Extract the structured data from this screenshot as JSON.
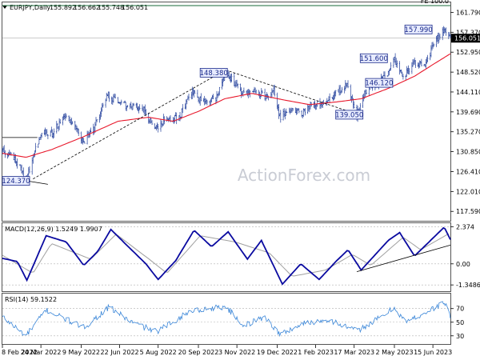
{
  "header": {
    "symbol": "EURJPY,Daily",
    "ohlc": [
      "155.892",
      "156.662",
      "155.748",
      "156.051"
    ]
  },
  "watermark": "ActionForex.com",
  "colors": {
    "candle": "#1f3d9a",
    "sma": "#e8192c",
    "macd": "#0a0aa0",
    "signal": "#a0a0a0",
    "rsi": "#3a86d8",
    "trendline": "#000000",
    "fe_line": "#1a6b3a",
    "price_tag_bg": "#000000",
    "price_tag_fg": "#ffffff",
    "label_border": "#1a2a8a",
    "label_bg": "#e8ecff"
  },
  "chart_data": [
    {
      "type": "line",
      "panel": "price",
      "y_axis": {
        "range": [
          115.5,
          164.0
        ],
        "ticks": [
          "161.790",
          "157.370",
          "152.950",
          "148.520",
          "144.110",
          "139.690",
          "135.270",
          "130.850",
          "126.410",
          "122.010",
          "117.590"
        ]
      },
      "x_axis": {
        "range": [
          "2022-02-08",
          "2023-07-05"
        ],
        "ticks": [
          "8 Feb 2022",
          "24 Mar 2022",
          "9 May 2022",
          "22 Jun 2022",
          "5 Aug 2022",
          "20 Sep 2022",
          "3 Nov 2022",
          "19 Dec 2022",
          "1 Feb 2023",
          "17 Mar 2023",
          "2 May 2023",
          "15 Jun 2023"
        ]
      },
      "current_price": "156.051",
      "fe_level": {
        "label": "FE 100.0",
        "value": 163.3
      },
      "series": [
        {
          "role": "price",
          "points": [
            [
              "2022-02-08",
              131.0
            ],
            [
              "2022-02-18",
              130.2
            ],
            [
              "2022-03-01",
              127.6
            ],
            [
              "2022-03-07",
              124.37
            ],
            [
              "2022-03-15",
              129.8
            ],
            [
              "2022-03-28",
              135.5
            ],
            [
              "2022-04-06",
              134.8
            ],
            [
              "2022-04-20",
              139.0
            ],
            [
              "2022-05-02",
              137.0
            ],
            [
              "2022-05-12",
              133.0
            ],
            [
              "2022-05-25",
              136.5
            ],
            [
              "2022-06-08",
              143.6
            ],
            [
              "2022-06-20",
              141.5
            ],
            [
              "2022-07-05",
              141.0
            ],
            [
              "2022-07-20",
              140.2
            ],
            [
              "2022-08-02",
              135.6
            ],
            [
              "2022-08-12",
              138.0
            ],
            [
              "2022-08-29",
              138.4
            ],
            [
              "2022-09-12",
              144.2
            ],
            [
              "2022-09-27",
              141.5
            ],
            [
              "2022-10-10",
              143.0
            ],
            [
              "2022-10-21",
              148.38
            ],
            [
              "2022-11-01",
              146.0
            ],
            [
              "2022-11-11",
              143.5
            ],
            [
              "2022-11-22",
              144.8
            ],
            [
              "2022-12-05",
              143.0
            ],
            [
              "2022-12-15",
              144.5
            ],
            [
              "2022-12-22",
              138.5
            ],
            [
              "2023-01-06",
              140.5
            ],
            [
              "2023-01-16",
              139.0
            ],
            [
              "2023-01-26",
              141.5
            ],
            [
              "2023-02-09",
              141.0
            ],
            [
              "2023-02-27",
              144.5
            ],
            [
              "2023-03-09",
              145.5
            ],
            [
              "2023-03-20",
              139.05
            ],
            [
              "2023-03-31",
              144.5
            ],
            [
              "2023-04-12",
              146.12
            ],
            [
              "2023-04-25",
              148.5
            ],
            [
              "2023-05-02",
              151.6
            ],
            [
              "2023-05-12",
              147.6
            ],
            [
              "2023-05-26",
              150.5
            ],
            [
              "2023-06-06",
              149.8
            ],
            [
              "2023-06-16",
              154.8
            ],
            [
              "2023-06-28",
              157.99
            ],
            [
              "2023-07-05",
              156.05
            ]
          ]
        },
        {
          "role": "sma",
          "points": [
            [
              "2022-02-08",
              130.5
            ],
            [
              "2022-03-07",
              129.6
            ],
            [
              "2022-04-05",
              131.3
            ],
            [
              "2022-05-12",
              134.2
            ],
            [
              "2022-06-20",
              137.6
            ],
            [
              "2022-07-25",
              138.5
            ],
            [
              "2022-08-22",
              137.6
            ],
            [
              "2022-09-20",
              139.8
            ],
            [
              "2022-10-20",
              142.6
            ],
            [
              "2022-11-20",
              143.8
            ],
            [
              "2022-12-25",
              142.4
            ],
            [
              "2023-01-25",
              141.3
            ],
            [
              "2023-02-25",
              141.9
            ],
            [
              "2023-03-25",
              142.6
            ],
            [
              "2023-04-25",
              144.9
            ],
            [
              "2023-05-25",
              147.6
            ],
            [
              "2023-06-15",
              150.2
            ],
            [
              "2023-07-05",
              152.6
            ]
          ]
        }
      ],
      "trendlines": [
        [
          [
            "2022-02-08",
            134.0
          ],
          [
            "2022-03-20",
            134.0
          ]
        ],
        [
          [
            "2022-02-22",
            124.8
          ],
          [
            "2022-04-01",
            123.6
          ]
        ],
        [
          [
            "2022-03-15",
            124.8
          ],
          [
            "2022-10-21",
            149.0
          ]
        ],
        [
          [
            "2022-10-21",
            149.0
          ],
          [
            "2023-03-20",
            139.2
          ]
        ]
      ],
      "annotations": [
        {
          "text": "124.370",
          "x": "2022-02-08",
          "value": 124.37
        },
        {
          "text": "148.380",
          "x": "2022-09-22",
          "value": 148.38
        },
        {
          "text": "139.050",
          "x": "2023-02-24",
          "value": 139.05
        },
        {
          "text": "146.120",
          "x": "2023-03-30",
          "value": 146.12
        },
        {
          "text": "151.600",
          "x": "2023-03-24",
          "value": 151.6
        },
        {
          "text": "157.990",
          "x": "2023-05-14",
          "value": 157.99
        }
      ]
    },
    {
      "type": "line",
      "panel": "macd",
      "title": "MACD(12,26,9) 1.5249 1.9907",
      "y_axis": {
        "range": [
          -1.75,
          2.6
        ],
        "ticks": [
          "2.374",
          "0.00",
          "-1.3486"
        ]
      },
      "series": [
        {
          "role": "macd",
          "points": [
            [
              "2022-02-08",
              0.35
            ],
            [
              "2022-02-25",
              0.15
            ],
            [
              "2022-03-08",
              -1.05
            ],
            [
              "2022-03-30",
              1.8
            ],
            [
              "2022-04-22",
              1.4
            ],
            [
              "2022-05-12",
              -0.1
            ],
            [
              "2022-05-28",
              0.8
            ],
            [
              "2022-06-12",
              2.2
            ],
            [
              "2022-06-30",
              1.2
            ],
            [
              "2022-07-22",
              0.0
            ],
            [
              "2022-08-05",
              -1.0
            ],
            [
              "2022-08-25",
              0.2
            ],
            [
              "2022-09-15",
              2.15
            ],
            [
              "2022-10-05",
              1.1
            ],
            [
              "2022-10-24",
              2.05
            ],
            [
              "2022-11-15",
              0.3
            ],
            [
              "2022-12-01",
              1.5
            ],
            [
              "2022-12-25",
              -1.3
            ],
            [
              "2023-01-15",
              0.0
            ],
            [
              "2023-02-05",
              -1.0
            ],
            [
              "2023-02-25",
              0.2
            ],
            [
              "2023-03-10",
              0.9
            ],
            [
              "2023-03-25",
              -0.4
            ],
            [
              "2023-04-25",
              1.5
            ],
            [
              "2023-05-08",
              2.0
            ],
            [
              "2023-05-25",
              0.5
            ],
            [
              "2023-06-28",
              2.35
            ],
            [
              "2023-07-05",
              1.55
            ]
          ]
        },
        {
          "role": "signal",
          "points": [
            [
              "2022-02-08",
              0.55
            ],
            [
              "2022-03-15",
              -0.6
            ],
            [
              "2022-04-05",
              1.3
            ],
            [
              "2022-05-20",
              0.3
            ],
            [
              "2022-06-18",
              1.9
            ],
            [
              "2022-07-28",
              0.2
            ],
            [
              "2022-08-15",
              -0.6
            ],
            [
              "2022-09-22",
              1.8
            ],
            [
              "2022-11-01",
              1.4
            ],
            [
              "2022-12-10",
              0.7
            ],
            [
              "2023-01-05",
              -0.8
            ],
            [
              "2023-02-12",
              -0.4
            ],
            [
              "2023-03-15",
              0.6
            ],
            [
              "2023-04-05",
              -0.1
            ],
            [
              "2023-05-12",
              1.7
            ],
            [
              "2023-06-01",
              0.9
            ],
            [
              "2023-07-05",
              1.99
            ]
          ]
        }
      ],
      "trendlines": [
        [
          [
            "2023-03-20",
            -0.5
          ],
          [
            "2023-07-05",
            1.2
          ]
        ]
      ]
    },
    {
      "type": "line",
      "panel": "rsi",
      "title": "RSI(14) 59.1522",
      "y_axis": {
        "range": [
          18,
          92
        ],
        "ticks": [
          "70",
          "50",
          "30"
        ]
      },
      "series": [
        {
          "role": "rsi",
          "points": [
            [
              "2022-02-08",
              58
            ],
            [
              "2022-03-07",
              30
            ],
            [
              "2022-03-30",
              68
            ],
            [
              "2022-05-12",
              42
            ],
            [
              "2022-06-10",
              72
            ],
            [
              "2022-07-06",
              50
            ],
            [
              "2022-08-03",
              36
            ],
            [
              "2022-09-12",
              67
            ],
            [
              "2022-10-21",
              73
            ],
            [
              "2022-11-11",
              45
            ],
            [
              "2022-12-05",
              58
            ],
            [
              "2022-12-22",
              32
            ],
            [
              "2023-01-18",
              48
            ],
            [
              "2023-02-15",
              54
            ],
            [
              "2023-03-20",
              37
            ],
            [
              "2023-04-20",
              60
            ],
            [
              "2023-05-02",
              72
            ],
            [
              "2023-05-15",
              50
            ],
            [
              "2023-06-16",
              70
            ],
            [
              "2023-06-28",
              80
            ],
            [
              "2023-07-05",
              59
            ]
          ]
        }
      ]
    }
  ]
}
